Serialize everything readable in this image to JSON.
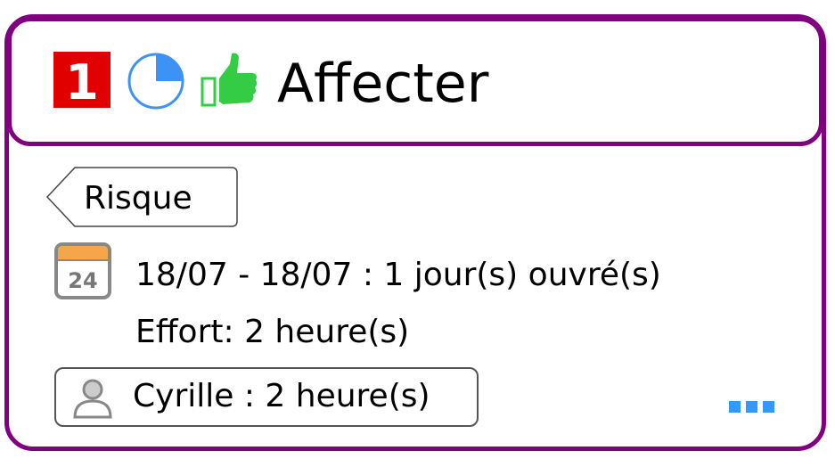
{
  "task": {
    "title": "Affecter",
    "priority": "1",
    "priority_icon": "priority-1-badge",
    "progress_percent": 25,
    "status_icon": "thumbs-up-icon",
    "category_tag": "Risque",
    "calendar_day": "24",
    "dates": "18/07 - 18/07 : 1 jour(s) ouvré(s)",
    "effort": "Effort: 2 heure(s)",
    "resource": "Cyrille : 2 heure(s)"
  },
  "colors": {
    "border": "#800080",
    "priority": "#e00000",
    "progress": "#3d93f5",
    "thumb": "#33cc44",
    "calendar_header": "#f5a54a",
    "more": "#3399ff"
  }
}
